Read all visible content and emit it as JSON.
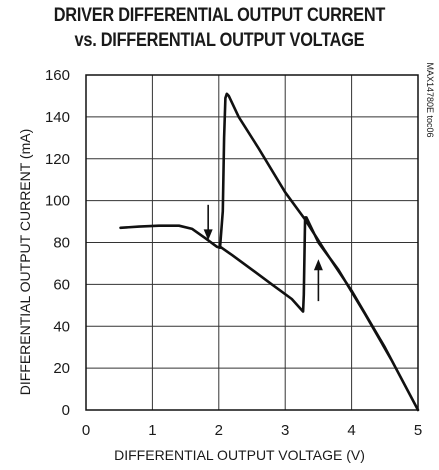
{
  "chart_data": {
    "type": "line",
    "title_line1": "DRIVER DIFFERENTIAL OUTPUT CURRENT",
    "title_line2": "vs. DIFFERENTIAL OUTPUT VOLTAGE",
    "xlabel": "DIFFERENTIAL OUTPUT VOLTAGE (V)",
    "ylabel": "DIFFERENTIAL OUTPUT CURRENT (mA)",
    "part_number": "MAX14780E toc06",
    "xlim": [
      0,
      5
    ],
    "ylim": [
      0,
      160
    ],
    "x_ticks": [
      0,
      1,
      2,
      3,
      4,
      5
    ],
    "y_ticks": [
      0,
      20,
      40,
      60,
      80,
      100,
      120,
      140,
      160
    ],
    "grid": true,
    "series": [
      {
        "values": [
          [
            0.52,
            87
          ],
          [
            0.8,
            87.6
          ],
          [
            1.1,
            88
          ],
          [
            1.4,
            88
          ],
          [
            1.6,
            86.5
          ],
          [
            1.8,
            82
          ],
          [
            1.97,
            78
          ],
          [
            2.02,
            77.5
          ],
          [
            2.02,
            78
          ],
          [
            2.06,
            95
          ],
          [
            2.08,
            130
          ],
          [
            2.1,
            149
          ],
          [
            2.12,
            151
          ],
          [
            2.15,
            150
          ],
          [
            2.3,
            140
          ],
          [
            2.6,
            125
          ],
          [
            3.0,
            104
          ],
          [
            3.3,
            91
          ],
          [
            3.6,
            76
          ],
          [
            4.0,
            57
          ],
          [
            4.5,
            30
          ],
          [
            5.0,
            0
          ],
          [
            5.0,
            0
          ],
          [
            4.6,
            24
          ],
          [
            4.2,
            46
          ],
          [
            3.8,
            67
          ],
          [
            3.5,
            80
          ],
          [
            3.32,
            92
          ],
          [
            3.3,
            92
          ],
          [
            3.29,
            75
          ],
          [
            3.28,
            55
          ],
          [
            3.27,
            47
          ],
          [
            3.1,
            53
          ],
          [
            2.8,
            60
          ],
          [
            2.5,
            67
          ],
          [
            2.2,
            74
          ],
          [
            2.02,
            78
          ]
        ]
      }
    ],
    "annotations": [
      {
        "type": "arrow-down",
        "x": 1.84,
        "y_from": 98,
        "y_to": 81
      },
      {
        "type": "arrow-up",
        "x": 3.5,
        "y_from": 52,
        "y_to": 72
      }
    ]
  }
}
